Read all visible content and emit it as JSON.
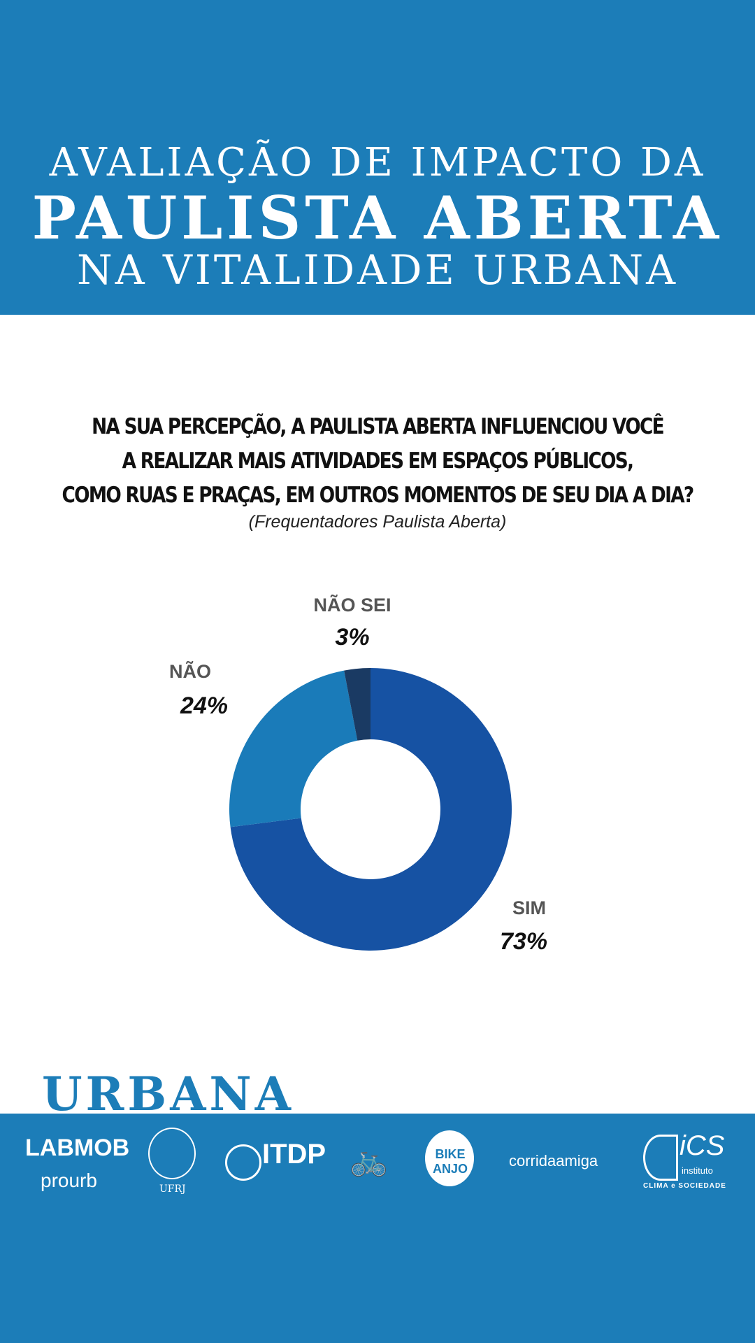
{
  "header": {
    "line1": "AVALIAÇÃO DE IMPACTO DA",
    "line2": "PAULISTA ABERTA",
    "line3": "NA VITALIDADE URBANA"
  },
  "question": {
    "line1": "NA SUA PERCEPÇÃO, A PAULISTA ABERTA INFLUENCIOU VOCÊ",
    "line2": "A REALIZAR MAIS ATIVIDADES EM ESPAÇOS PÚBLICOS,",
    "line3": "COMO RUAS E PRAÇAS, EM OUTROS MOMENTOS DE SEU DIA A DIA?",
    "subtitle": "(Frequentadores Paulista Aberta)"
  },
  "chart_data": {
    "type": "pie",
    "donut": true,
    "title": "NA SUA PERCEPÇÃO, A PAULISTA ABERTA INFLUENCIOU VOCÊ A REALIZAR MAIS ATIVIDADES EM ESPAÇOS PÚBLICOS, COMO RUAS E PRAÇAS, EM OUTROS MOMENTOS DE SEU DIA A DIA?",
    "slices": [
      {
        "label": "SIM",
        "value": 73,
        "display": "73%",
        "color": "#1652a3"
      },
      {
        "label": "NÃO",
        "value": 24,
        "display": "24%",
        "color": "#1a7bb9"
      },
      {
        "label": "NÃO SEI",
        "value": 3,
        "display": "3%",
        "color": "#1a3a63"
      }
    ]
  },
  "brand": "URBANA",
  "footer": {
    "logos": [
      "LABMOB",
      "prourb",
      "UFRJ",
      "ITDP",
      "BIKE ANJO",
      "corridaamiga",
      "iCS",
      "instituto",
      "CLIMA e SOCIEDADE"
    ]
  }
}
